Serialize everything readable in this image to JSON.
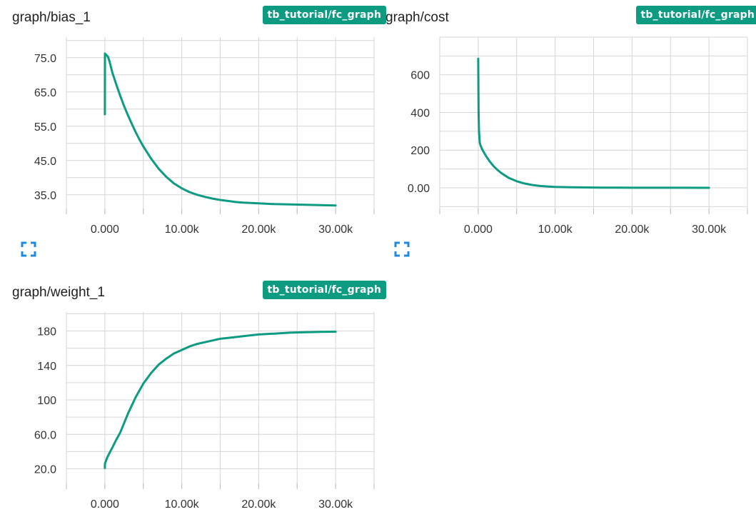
{
  "colors": {
    "accent": "#0d9b82",
    "grid": "#d6d6d6",
    "text": "#212121"
  },
  "cards": [
    {
      "title": "graph/bias_1",
      "run": "tb_tutorial/fc_graph",
      "expand_icon": "fullscreen-icon"
    },
    {
      "title": "graph/cost",
      "run": "tb_tutorial/fc_graph",
      "expand_icon": "fullscreen-icon"
    },
    {
      "title": "graph/weight_1",
      "run": "tb_tutorial/fc_graph",
      "expand_icon": ""
    }
  ],
  "chart_data": [
    {
      "type": "line",
      "title": "graph/bias_1",
      "xlim": [
        -5000,
        35000
      ],
      "ylim": [
        31,
        81
      ],
      "xticks": [
        0,
        10000,
        20000,
        30000
      ],
      "xtick_labels": [
        "0.000",
        "10.00k",
        "20.00k",
        "30.00k"
      ],
      "yticks": [
        35,
        45,
        55,
        65,
        75
      ],
      "ytick_labels": [
        "35.0",
        "45.0",
        "55.0",
        "65.0",
        "75.0"
      ],
      "grid": true,
      "series": [
        {
          "color": "#0d9b82",
          "x": [
            0,
            10,
            200,
            400,
            600,
            800,
            1000,
            1500,
            2000,
            2500,
            3000,
            3500,
            4000,
            4500,
            5000,
            6000,
            7000,
            8000,
            9000,
            10000,
            11000,
            12000,
            13000,
            14000,
            15000,
            16000,
            17000,
            18000,
            19000,
            20000,
            22000,
            24000,
            26000,
            28000,
            30000
          ],
          "y": [
            58.5,
            76.2,
            75.8,
            75.3,
            74.0,
            72.2,
            70.5,
            67.1,
            63.9,
            60.9,
            58.2,
            55.7,
            53.3,
            51.1,
            49.1,
            45.6,
            42.6,
            40.2,
            38.3,
            36.9,
            35.8,
            35.0,
            34.4,
            33.9,
            33.5,
            33.2,
            32.9,
            32.7,
            32.6,
            32.5,
            32.3,
            32.2,
            32.1,
            32.0,
            31.9
          ]
        }
      ]
    },
    {
      "type": "line",
      "title": "graph/cost",
      "xlim": [
        -5000,
        35000
      ],
      "ylim": [
        -110,
        800
      ],
      "xticks": [
        0,
        10000,
        20000,
        30000
      ],
      "xtick_labels": [
        "0.000",
        "10.00k",
        "20.00k",
        "30.00k"
      ],
      "yticks": [
        0,
        200,
        400,
        600
      ],
      "ytick_labels": [
        "0.00",
        "200",
        "400",
        "600"
      ],
      "grid": true,
      "series": [
        {
          "color": "#0d9b82",
          "x": [
            0,
            10,
            50,
            100,
            200,
            300,
            500,
            1000,
            1500,
            2000,
            2500,
            3000,
            4000,
            5000,
            6000,
            7000,
            8000,
            9000,
            10000,
            12000,
            14000,
            16000,
            18000,
            20000,
            25000,
            30000
          ],
          "y": [
            685,
            620,
            400,
            300,
            240,
            225,
            205,
            170,
            140,
            115,
            95,
            78,
            52,
            35,
            23,
            15,
            10,
            7,
            5,
            3,
            2,
            1,
            1,
            0.5,
            0.2,
            0.1
          ]
        }
      ]
    },
    {
      "type": "line",
      "title": "graph/weight_1",
      "xlim": [
        -5000,
        35000
      ],
      "ylim": [
        3,
        202
      ],
      "xticks": [
        0,
        10000,
        20000,
        30000
      ],
      "xtick_labels": [
        "0.000",
        "10.00k",
        "20.00k",
        "30.00k"
      ],
      "yticks": [
        20,
        60,
        100,
        140,
        180
      ],
      "ytick_labels": [
        "20.0",
        "60.0",
        "100",
        "140",
        "180"
      ],
      "grid": true,
      "series": [
        {
          "color": "#0d9b82",
          "x": [
            0,
            10,
            300,
            700,
            1000,
            1500,
            2000,
            3000,
            4000,
            5000,
            6000,
            7000,
            8000,
            9000,
            10000,
            11000,
            12000,
            13000,
            14000,
            15000,
            16000,
            18000,
            20000,
            22000,
            24000,
            26000,
            28000,
            30000
          ],
          "y": [
            21,
            26,
            33,
            40,
            45,
            54,
            62,
            84,
            103,
            119,
            131,
            141,
            148,
            154,
            158,
            162,
            165,
            167,
            169,
            171,
            172,
            174,
            176,
            177,
            178,
            178.5,
            179,
            179.2
          ]
        }
      ]
    }
  ]
}
